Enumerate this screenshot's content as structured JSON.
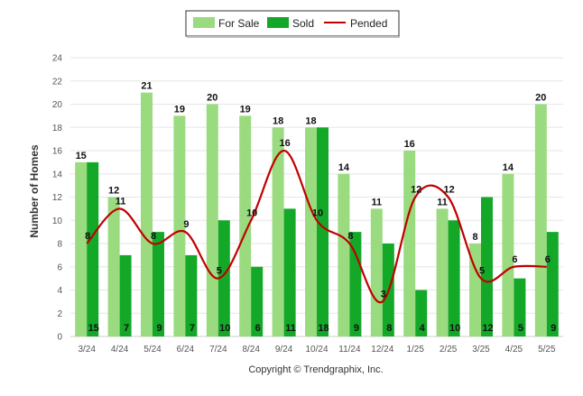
{
  "chart_data": {
    "type": "bar",
    "categories": [
      "3/24",
      "4/24",
      "5/24",
      "6/24",
      "7/24",
      "8/24",
      "9/24",
      "10/24",
      "11/24",
      "12/24",
      "1/25",
      "2/25",
      "3/25",
      "4/25",
      "5/25"
    ],
    "series": [
      {
        "name": "For Sale",
        "type": "bar",
        "color": "#9bdb7f",
        "values": [
          15,
          12,
          21,
          19,
          20,
          19,
          18,
          18,
          14,
          11,
          16,
          11,
          8,
          14,
          20
        ]
      },
      {
        "name": "Sold",
        "type": "bar",
        "color": "#14a829",
        "values": [
          15,
          7,
          9,
          7,
          10,
          6,
          11,
          18,
          9,
          8,
          4,
          10,
          12,
          5,
          9
        ]
      },
      {
        "name": "Pended",
        "type": "line",
        "color": "#c00000",
        "values": [
          8,
          11,
          8,
          9,
          5,
          10,
          16,
          10,
          8,
          3,
          12,
          12,
          5,
          6,
          6
        ]
      }
    ],
    "ylabel": "Number of Homes",
    "ylim": [
      0,
      24
    ],
    "yticks": [
      0,
      2,
      4,
      6,
      8,
      10,
      12,
      14,
      16,
      18,
      20,
      22,
      24
    ],
    "grid": true,
    "legend_position": "top-center"
  },
  "footer": {
    "copyright": "Copyright © Trendgraphix, Inc."
  }
}
